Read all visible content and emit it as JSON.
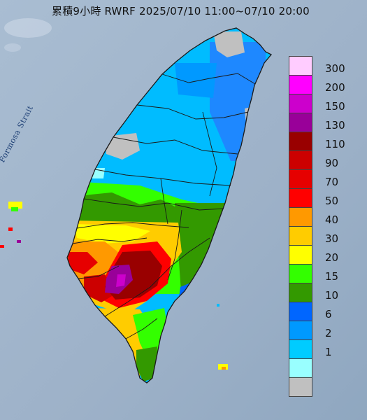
{
  "title": "累積9小時 RWRF 2025/07/10 11:00~07/10 20:00",
  "sea_label": "Formosa Strait",
  "legend": {
    "colors": [
      "#ffccff",
      "#ff00ff",
      "#cc00cc",
      "#990099",
      "#990000",
      "#cc0000",
      "#e60000",
      "#ff0000",
      "#ff9900",
      "#ffcc00",
      "#ffff00",
      "#33ff00",
      "#339900",
      "#0066ff",
      "#0099ff",
      "#00ccff",
      "#99ffff",
      "#c0c0c0"
    ],
    "labels": [
      "300",
      "200",
      "150",
      "130",
      "110",
      "90",
      "70",
      "50",
      "40",
      "30",
      "20",
      "15",
      "10",
      "6",
      "2",
      "1"
    ]
  },
  "colors": {
    "sea": "#9fb3c9",
    "land_north": "#00bcff",
    "land_grey": "#c0c0c0",
    "boundary": "#1a1a1a"
  }
}
